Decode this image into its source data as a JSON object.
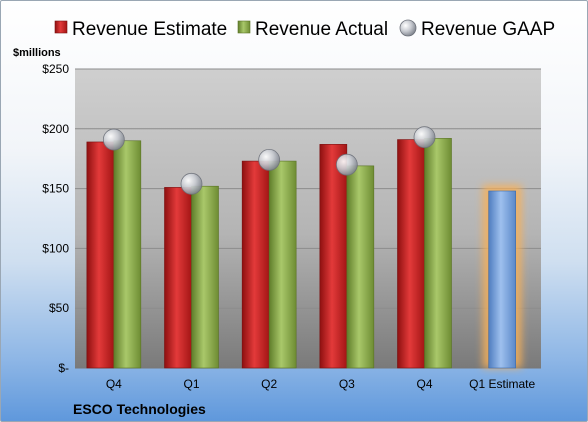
{
  "chart_data": {
    "type": "bar",
    "company": "ESCO Technologies",
    "unit_label": "$millions",
    "categories": [
      "Q4",
      "Q1",
      "Q2",
      "Q3",
      "Q4",
      "Q1 Estimate"
    ],
    "series": [
      {
        "name": "Revenue Estimate",
        "color": "#cc1f1f",
        "values": [
          189,
          151,
          173,
          187,
          191,
          null
        ]
      },
      {
        "name": "Revenue Actual",
        "color": "#8fb14c",
        "values": [
          190,
          152,
          173,
          169,
          192,
          null
        ]
      },
      {
        "name": "Revenue GAAP",
        "color": "#b8bcc4",
        "values": [
          191,
          154,
          174,
          170,
          193,
          null
        ]
      }
    ],
    "estimate": {
      "category": "Q1 Estimate",
      "value": 148,
      "color": "#6f9bd8",
      "glow": "#f7b058"
    },
    "y_ticks": [
      {
        "value": 0,
        "label": "$-"
      },
      {
        "value": 50,
        "label": "$50"
      },
      {
        "value": 100,
        "label": "$100"
      },
      {
        "value": 150,
        "label": "$150"
      },
      {
        "value": 200,
        "label": "$200"
      },
      {
        "value": 250,
        "label": "$250"
      }
    ],
    "ylim": [
      0,
      250
    ],
    "grid": true,
    "legend_position": "top"
  }
}
